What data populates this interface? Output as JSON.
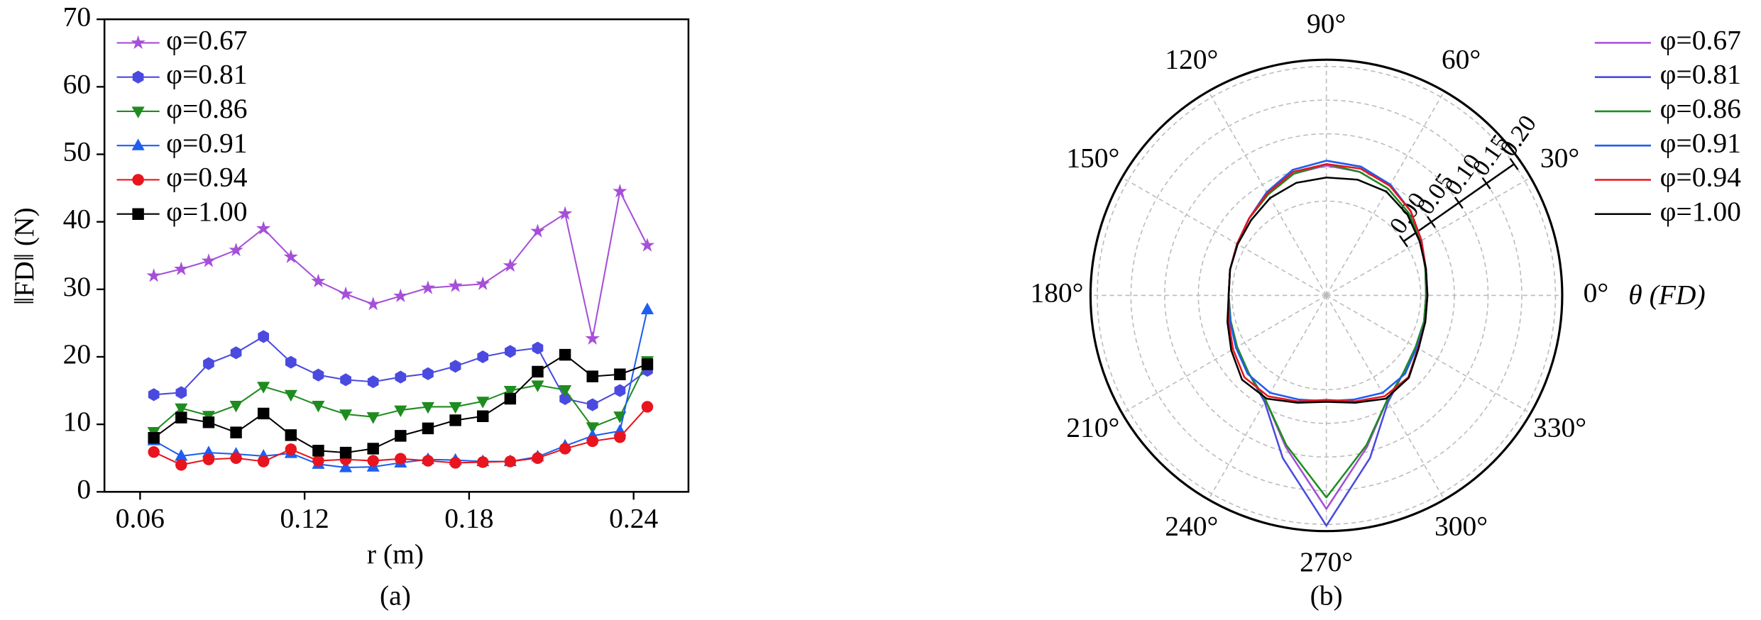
{
  "chart_data": [
    {
      "type": "line",
      "x_label": "r (m)",
      "y_label": "‖FD‖ (N)",
      "caption": "(a)",
      "x": [
        0.065,
        0.075,
        0.085,
        0.095,
        0.105,
        0.115,
        0.125,
        0.135,
        0.145,
        0.155,
        0.165,
        0.175,
        0.185,
        0.195,
        0.205,
        0.215,
        0.225,
        0.235,
        0.245
      ],
      "xlim": [
        0.047,
        0.26
      ],
      "xticks": [
        0.06,
        0.12,
        0.18,
        0.24
      ],
      "ylim": [
        0,
        70
      ],
      "yticks": [
        0,
        10,
        20,
        30,
        40,
        50,
        60,
        70
      ],
      "legend": "upper left",
      "series": [
        {
          "name": "φ=0.67",
          "color": "#a64fd8",
          "marker": "star",
          "values": [
            32,
            33,
            34.2,
            35.8,
            39,
            34.8,
            31.2,
            29.3,
            27.8,
            29,
            30.2,
            30.5,
            30.8,
            33.5,
            38.6,
            41.2,
            22.7,
            44.5,
            36.5
          ]
        },
        {
          "name": "φ=0.81",
          "color": "#4a4ae0",
          "marker": "hexagon",
          "values": [
            14.4,
            14.7,
            19,
            20.6,
            23,
            19.2,
            17.3,
            16.6,
            16.3,
            17,
            17.5,
            18.6,
            20,
            20.8,
            21.3,
            13.8,
            12.9,
            15,
            18
          ]
        },
        {
          "name": "φ=0.86",
          "color": "#1e8c1e",
          "marker": "triangle-down",
          "values": [
            8.9,
            12.4,
            11.3,
            12.8,
            15.6,
            14.4,
            12.8,
            11.5,
            11.1,
            12.1,
            12.6,
            12.6,
            13.4,
            15,
            15.8,
            15.1,
            9.6,
            11.2,
            19.4
          ]
        },
        {
          "name": "φ=0.91",
          "color": "#1e5ef0",
          "marker": "triangle-up",
          "values": [
            7.6,
            5.3,
            5.8,
            5.6,
            5.3,
            5.7,
            4.1,
            3.6,
            3.7,
            4.3,
            4.8,
            4.7,
            4.5,
            4.5,
            5.2,
            6.8,
            8.3,
            9,
            27
          ]
        },
        {
          "name": "φ=0.94",
          "color": "#e8141e",
          "marker": "circle",
          "values": [
            5.9,
            4,
            4.8,
            5,
            4.5,
            6.3,
            4.6,
            4.8,
            4.6,
            4.9,
            4.6,
            4.3,
            4.4,
            4.5,
            5,
            6.4,
            7.5,
            8.1,
            12.6
          ]
        },
        {
          "name": "φ=1.00",
          "color": "#000000",
          "marker": "square",
          "values": [
            8,
            11,
            10.3,
            8.8,
            11.6,
            8.4,
            6.1,
            5.8,
            6.4,
            8.3,
            9.4,
            10.6,
            11.2,
            13.8,
            17.8,
            20.3,
            17.1,
            17.4,
            18.9
          ]
        }
      ]
    },
    {
      "type": "polar",
      "label": "θ (FD)",
      "caption": "(b)",
      "theta": [
        0,
        15,
        30,
        45,
        60,
        75,
        90,
        105,
        120,
        135,
        150,
        165,
        180,
        195,
        210,
        225,
        240,
        255,
        270,
        285,
        300,
        315,
        330,
        345
      ],
      "thetaticks": [
        {
          "value": 0,
          "label": "0°"
        },
        {
          "value": 30,
          "label": "30°"
        },
        {
          "value": 60,
          "label": "60°"
        },
        {
          "value": 90,
          "label": "90°"
        },
        {
          "value": 120,
          "label": "120°"
        },
        {
          "value": 150,
          "label": "150°"
        },
        {
          "value": 180,
          "label": "180°"
        },
        {
          "value": 210,
          "label": "210°"
        },
        {
          "value": 240,
          "label": "240°"
        },
        {
          "value": 270,
          "label": "270°"
        },
        {
          "value": 300,
          "label": "300°"
        },
        {
          "value": 330,
          "label": "330°"
        }
      ],
      "rlim": [
        -0.14,
        0.21
      ],
      "rticks": [
        {
          "value": 0,
          "label": "0.00"
        },
        0.05,
        {
          "value": 0.1,
          "label": "0.10"
        },
        0.15,
        {
          "value": 0.2,
          "label": "0.20"
        }
      ],
      "grid": true,
      "legend": "right",
      "series": [
        {
          "name": "φ=0.67",
          "color": "#a64fd8",
          "values": [
            0.008,
            0.012,
            0.022,
            0.033,
            0.043,
            0.05,
            0.053,
            0.047,
            0.033,
            0.022,
            0.013,
            0.008,
            0.005,
            0.007,
            0.013,
            0.023,
            0.04,
            0.093,
            0.177,
            0.093,
            0.04,
            0.022,
            0.013,
            0.01
          ]
        },
        {
          "name": "φ=0.81",
          "color": "#4a4ae0",
          "values": [
            0.008,
            0.012,
            0.023,
            0.037,
            0.05,
            0.058,
            0.06,
            0.053,
            0.037,
            0.022,
            0.013,
            0.008,
            0.005,
            0.007,
            0.013,
            0.023,
            0.043,
            0.11,
            0.202,
            0.11,
            0.043,
            0.022,
            0.013,
            0.01
          ]
        },
        {
          "name": "φ=0.86",
          "color": "#1e8c1e",
          "values": [
            0.008,
            0.012,
            0.022,
            0.033,
            0.043,
            0.05,
            0.055,
            0.047,
            0.033,
            0.022,
            0.013,
            0.008,
            0.005,
            0.007,
            0.013,
            0.023,
            0.04,
            0.09,
            0.16,
            0.09,
            0.04,
            0.022,
            0.013,
            0.01
          ]
        },
        {
          "name": "φ=0.91",
          "color": "#1e5ef0",
          "values": [
            0.01,
            0.013,
            0.023,
            0.037,
            0.05,
            0.058,
            0.06,
            0.053,
            0.037,
            0.022,
            0.013,
            0.008,
            0.005,
            0.008,
            0.015,
            0.025,
            0.027,
            0.02,
            0.017,
            0.02,
            0.027,
            0.025,
            0.015,
            0.012
          ]
        },
        {
          "name": "φ=0.94",
          "color": "#e8141e",
          "values": [
            0.01,
            0.013,
            0.023,
            0.037,
            0.048,
            0.055,
            0.055,
            0.05,
            0.035,
            0.022,
            0.013,
            0.008,
            0.005,
            0.01,
            0.02,
            0.032,
            0.033,
            0.023,
            0.015,
            0.023,
            0.033,
            0.032,
            0.017,
            0.012
          ]
        },
        {
          "name": "φ=1.00",
          "color": "#000000",
          "values": [
            0.01,
            0.013,
            0.02,
            0.03,
            0.038,
            0.038,
            0.035,
            0.033,
            0.027,
            0.018,
            0.012,
            0.008,
            0.005,
            0.012,
            0.023,
            0.037,
            0.037,
            0.025,
            0.018,
            0.025,
            0.037,
            0.033,
            0.018,
            0.012
          ]
        }
      ]
    }
  ]
}
